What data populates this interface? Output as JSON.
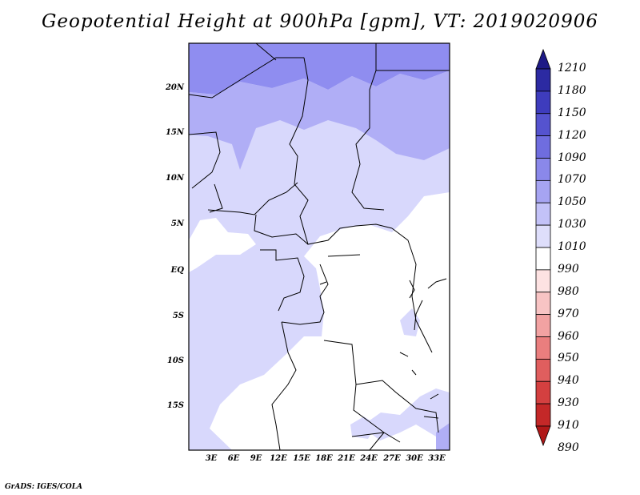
{
  "title": "Geopotential Height at 900hPa [gpm], VT: 2019020906",
  "credit": "GrADS: IGES/COLA",
  "map": {
    "lat_ticks": [
      "20N",
      "15N",
      "10N",
      "5N",
      "EQ",
      "5S",
      "10S",
      "15S"
    ],
    "lon_ticks": [
      "3E",
      "6E",
      "9E",
      "12E",
      "15E",
      "18E",
      "21E",
      "24E",
      "27E",
      "30E",
      "33E"
    ]
  },
  "colorbar": {
    "levels": [
      "1210",
      "1180",
      "1150",
      "1120",
      "1090",
      "1070",
      "1050",
      "1030",
      "1010",
      "990",
      "980",
      "970",
      "960",
      "950",
      "940",
      "930",
      "910",
      "890"
    ],
    "colors": [
      "#1e1a86",
      "#2c2aa2",
      "#3e3cbd",
      "#5553cf",
      "#6f6ddf",
      "#8a88ea",
      "#a6a4f2",
      "#c3c2f8",
      "#dedefb",
      "#ffffff",
      "#fde2e2",
      "#f8c4c4",
      "#f2a2a2",
      "#ea7e7e",
      "#e05e5e",
      "#d44040",
      "#c42828",
      "#b01818"
    ]
  },
  "fill_colors": {
    "c1": "#8f8df0",
    "c2": "#b0aef6",
    "c3": "#d8d8fc",
    "c4": "#ffffff"
  }
}
